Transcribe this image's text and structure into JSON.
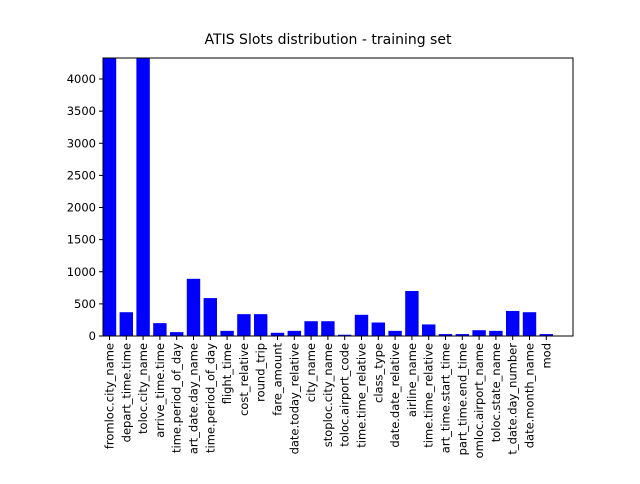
{
  "chart_data": {
    "type": "bar",
    "title": "ATIS Slots distribution - training set",
    "categories": [
      "fromloc.city_name",
      "depart_time.time",
      "toloc.city_name",
      "arrive_time.time",
      "time.period_of_day",
      "art_date.day_name",
      "time.period_of_day",
      "flight_time",
      "cost_relative",
      "round_trip",
      "fare_amount",
      "date.today_relative",
      "city_name",
      "stoploc.city_name",
      "toloc.airport_code",
      "time.time_relative",
      "class_type",
      "date.date_relative",
      "airline_name",
      "time.time_relative",
      "art_time.start_time",
      "part_time.end_time",
      "omloc.airport_name",
      "toloc.state_name",
      "t_date.day_number",
      "date.month_name",
      "mod"
    ],
    "values": [
      4330,
      370,
      4330,
      200,
      60,
      890,
      590,
      80,
      340,
      340,
      50,
      80,
      230,
      230,
      20,
      330,
      210,
      80,
      700,
      180,
      30,
      30,
      90,
      80,
      390,
      370,
      30
    ],
    "color": "#0000ff",
    "ylim": [
      0,
      4327
    ],
    "yticks": [
      0,
      500,
      1000,
      1500,
      2000,
      2500,
      3000,
      3500,
      4000
    ]
  }
}
